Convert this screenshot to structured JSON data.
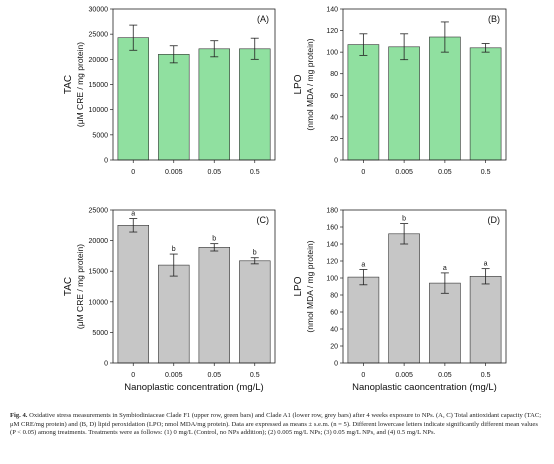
{
  "chart_data": [
    {
      "panel": "(A)",
      "type": "bar",
      "categories": [
        "0",
        "0.005",
        "0.05",
        "0.5"
      ],
      "values": [
        24300,
        21000,
        22100,
        22100
      ],
      "errors": [
        2500,
        1700,
        1600,
        2100
      ],
      "letters": [],
      "ylim": [
        0,
        30000
      ],
      "yticks": [
        0,
        5000,
        10000,
        15000,
        20000,
        25000,
        30000
      ],
      "ylabel_top": "TAC",
      "ylabel_bottom": "(μM CRE / mg protein)",
      "xlabel": "",
      "bar_color": "#90e0a0",
      "bar_stroke": "#333333"
    },
    {
      "panel": "(B)",
      "type": "bar",
      "categories": [
        "0",
        "0.005",
        "0.05",
        "0.5"
      ],
      "values": [
        107,
        105,
        114,
        104
      ],
      "errors": [
        10,
        12,
        14,
        4
      ],
      "letters": [],
      "ylim": [
        0,
        140
      ],
      "yticks": [
        0,
        20,
        40,
        60,
        80,
        100,
        120,
        140
      ],
      "ylabel_top": "LPO",
      "ylabel_bottom": "(nmol MDA / mg protein)",
      "xlabel": "",
      "bar_color": "#90e0a0",
      "bar_stroke": "#333333"
    },
    {
      "panel": "(C)",
      "type": "bar",
      "categories": [
        "0",
        "0.005",
        "0.05",
        "0.5"
      ],
      "values": [
        22500,
        16000,
        18900,
        16700
      ],
      "errors": [
        1100,
        1800,
        600,
        500
      ],
      "letters": [
        "a",
        "b",
        "b",
        "b"
      ],
      "ylim": [
        0,
        25000
      ],
      "yticks": [
        0,
        5000,
        10000,
        15000,
        20000,
        25000
      ],
      "ylabel_top": "TAC",
      "ylabel_bottom": "(μM CRE / mg protein)",
      "xlabel": "Nanoplastic concentration (mg/L)",
      "bar_color": "#c6c6c6",
      "bar_stroke": "#333333"
    },
    {
      "panel": "(D)",
      "type": "bar",
      "categories": [
        "0",
        "0.005",
        "0.05",
        "0.5"
      ],
      "values": [
        101,
        152,
        94,
        102
      ],
      "errors": [
        9,
        12,
        12,
        9
      ],
      "letters": [
        "a",
        "b",
        "a",
        "a"
      ],
      "ylim": [
        0,
        180
      ],
      "yticks": [
        0,
        20,
        40,
        60,
        80,
        100,
        120,
        140,
        160,
        180
      ],
      "ylabel_top": "LPO",
      "ylabel_bottom": "(nmol MDA / mg protein)",
      "xlabel": "Nanoplastic caoncentration (mg/L)",
      "bar_color": "#c6c6c6",
      "bar_stroke": "#333333"
    }
  ],
  "caption": {
    "label": "Fig. 4.",
    "text": "Oxidative stress measurements in Symbiodiniaceae Clade F1 (upper row, green bars) and Clade A1 (lower row, grey bars) after 4 weeks exposure to NPs. (A, C) Total antioxidant capacity (TAC; μM CRE/mg protein) and (B, D) lipid peroxidation (LPO; nmol MDA/mg protein). Data are expressed as means ± s.e.m. (n = 5). Different lowercase letters indicate significantly different mean values (P < 0.05) among treatments. Treatments were as follows: (1) 0 mg/L (Control, no NPs addition); (2) 0.005 mg/L NPs; (3) 0.05 mg/L NPs, and (4) 0.5 mg/L NPs."
  }
}
